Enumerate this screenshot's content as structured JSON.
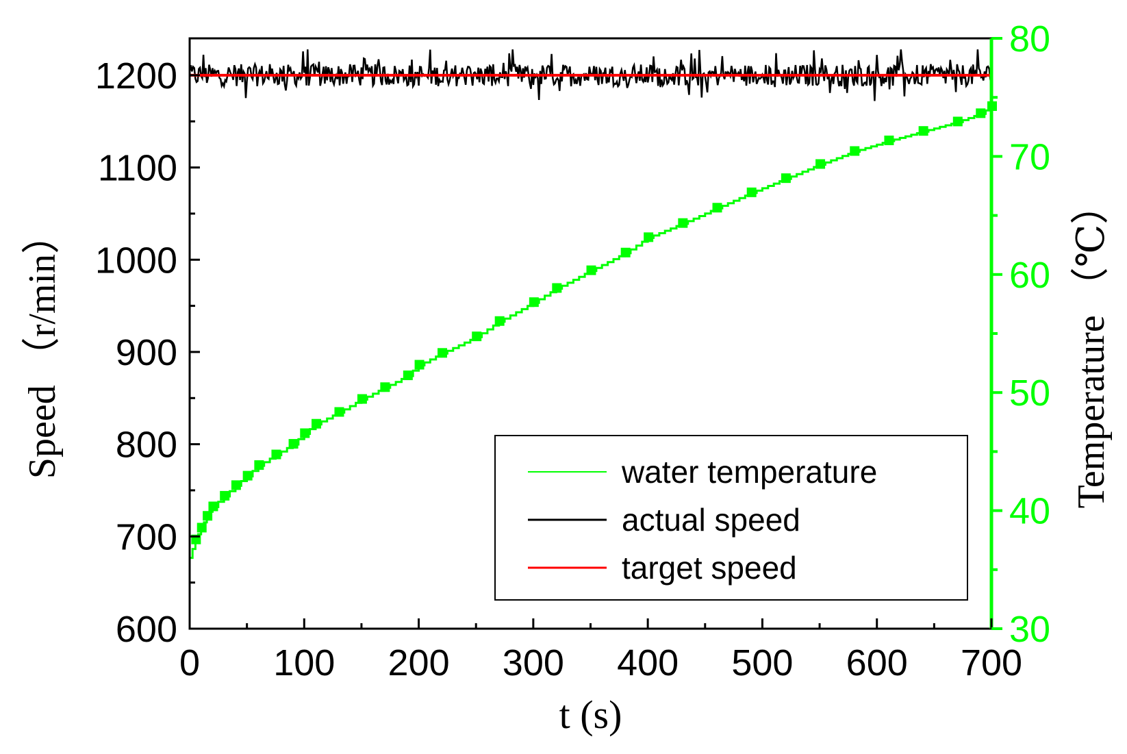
{
  "chart_data": {
    "type": "line",
    "title": "",
    "xlabel": "t (s)",
    "ylabel_left": "Speed （r/min）",
    "ylabel_right": "Temperature （℃）",
    "xlim": [
      0,
      700
    ],
    "ylim_left": [
      600,
      1240
    ],
    "ylim_right": [
      30,
      80
    ],
    "x_ticks": [
      "0",
      "100",
      "200",
      "300",
      "400",
      "500",
      "600",
      "700"
    ],
    "y_left_ticks": [
      "600",
      "700",
      "800",
      "900",
      "1000",
      "1100",
      "1200"
    ],
    "y_right_ticks": [
      "30",
      "40",
      "50",
      "60",
      "70",
      "80"
    ],
    "colors": {
      "water_temperature": "#00ff00",
      "actual_speed": "#000000",
      "target_speed": "#ff0000",
      "right_axis": "#00ff00"
    },
    "legend_placement": "bottom-right",
    "legend": [
      "water temperature",
      "actual speed",
      "target speed"
    ],
    "series": [
      {
        "name": "water temperature",
        "axis": "right",
        "x": [
          0,
          5,
          10,
          15,
          20,
          30,
          40,
          50,
          60,
          75,
          90,
          100,
          110,
          130,
          150,
          170,
          190,
          200,
          220,
          250,
          270,
          300,
          320,
          350,
          380,
          400,
          430,
          460,
          490,
          520,
          550,
          580,
          610,
          640,
          670,
          690,
          700
        ],
        "values": [
          36,
          37.5,
          38.5,
          39.5,
          40.3,
          41.2,
          42.1,
          42.9,
          43.8,
          44.7,
          45.6,
          46.5,
          47.3,
          48.3,
          49.4,
          50.4,
          51.4,
          52.3,
          53.3,
          54.7,
          56,
          57.6,
          58.8,
          60.3,
          61.8,
          63.1,
          64.3,
          65.6,
          66.9,
          68.1,
          69.3,
          70.4,
          71.3,
          72.1,
          72.9,
          73.6,
          74.2
        ]
      },
      {
        "name": "actual speed",
        "axis": "left",
        "mean": 1200,
        "band": [
          1165,
          1228
        ],
        "x_range": [
          0,
          700
        ]
      },
      {
        "name": "target speed",
        "axis": "left",
        "x": [
          0,
          700
        ],
        "values": [
          1200,
          1200
        ]
      }
    ]
  }
}
